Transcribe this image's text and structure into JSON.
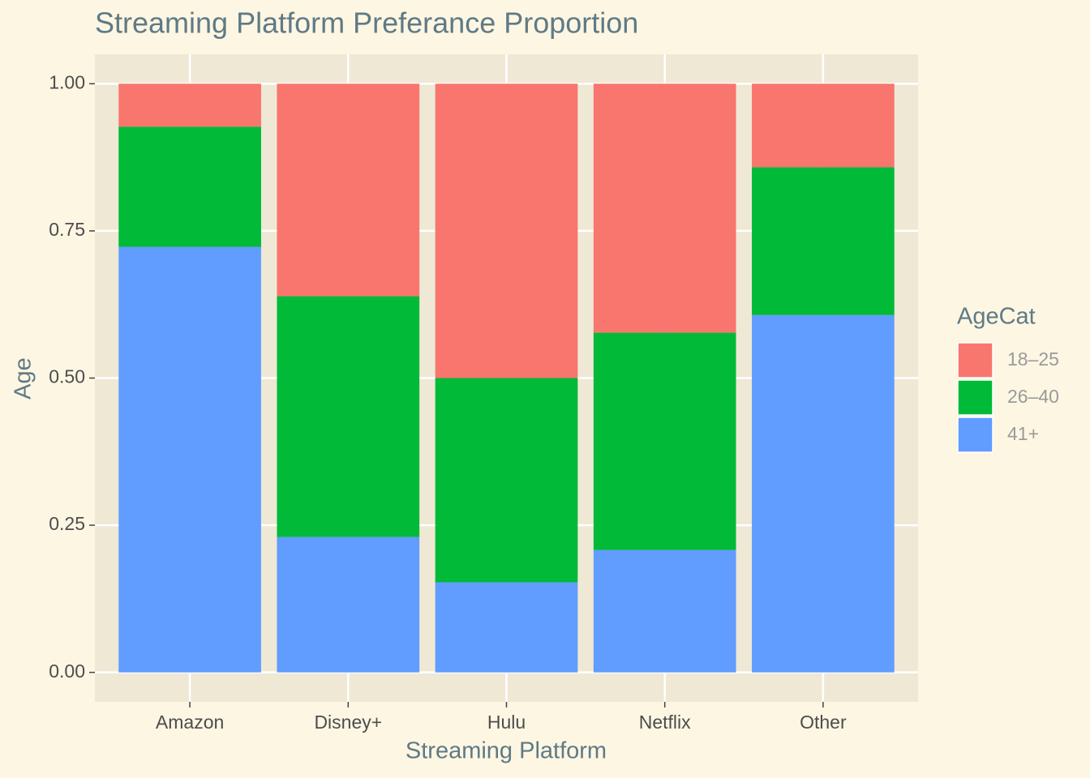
{
  "chart_data": {
    "type": "stacked_bar",
    "title": "Streaming Platform Preferance Proportion",
    "x_label": "Streaming Platform",
    "y_label": "Age",
    "legend_title": "AgeCat",
    "categories": [
      "Amazon",
      "Disney+",
      "Hulu",
      "Netflix",
      "Other"
    ],
    "series": [
      {
        "name": "18–25",
        "color": "#F8766D",
        "values": [
          0.073,
          0.361,
          0.5,
          0.423,
          0.142
        ]
      },
      {
        "name": "26–40",
        "color": "#00BA38",
        "values": [
          0.204,
          0.409,
          0.347,
          0.369,
          0.251
        ]
      },
      {
        "name": "41+",
        "color": "#619CFF",
        "values": [
          0.723,
          0.23,
          0.153,
          0.208,
          0.607
        ]
      }
    ],
    "ylim": [
      -0.05,
      1.05
    ],
    "yticks": [
      {
        "value": 0,
        "label": "0.00"
      },
      {
        "value": 0.25,
        "label": "0.25"
      },
      {
        "value": 0.5,
        "label": "0.50"
      },
      {
        "value": 0.75,
        "label": "0.75"
      },
      {
        "value": 1,
        "label": "1.00"
      }
    ],
    "grid": true,
    "legend": "right"
  }
}
